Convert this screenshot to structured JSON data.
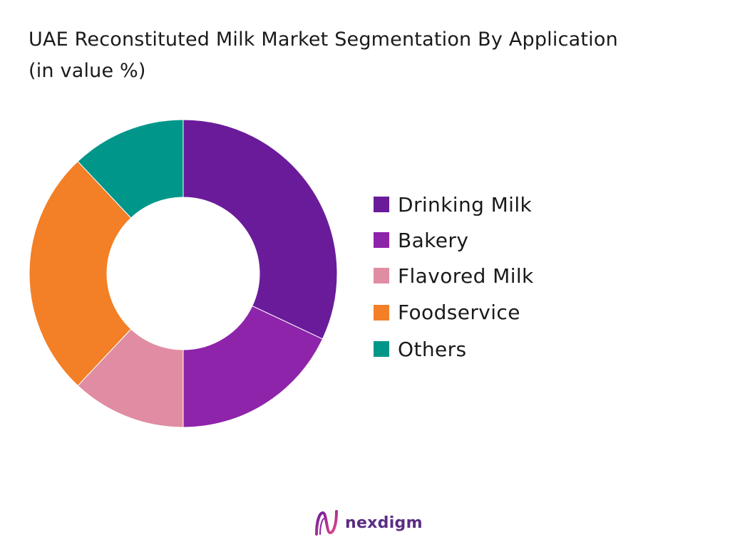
{
  "chart_data": {
    "type": "pie",
    "title": "UAE Reconstituted Milk Market Segmentation By Application",
    "subtitle": "(in value %)",
    "categories": [
      "Drinking Milk",
      "Bakery",
      "Flavored Milk",
      "Foodservice",
      "Others"
    ],
    "values": [
      32,
      18,
      12,
      26,
      12
    ],
    "colors": [
      "#6a1b9a",
      "#8e24aa",
      "#e08da3",
      "#f37f26",
      "#00968a"
    ],
    "legend_position": "right",
    "donut": true
  },
  "brand": {
    "name": "nexdigm",
    "icon": "nexdigm-logo-icon",
    "color": "#5a2d82"
  }
}
